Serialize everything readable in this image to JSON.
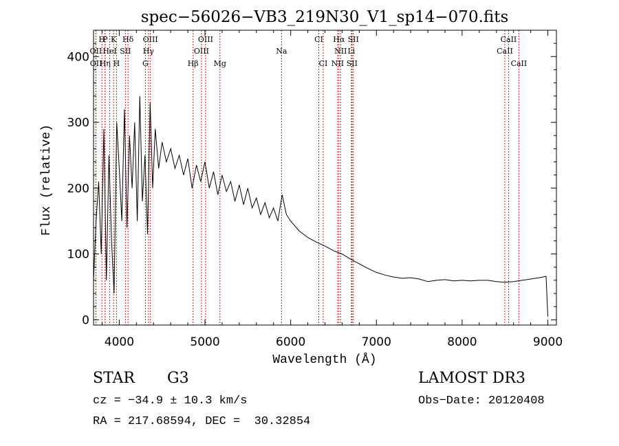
{
  "chart_data": {
    "type": "line",
    "title": "spec−56026−VB3_219N30_V1_sp14−070.fits",
    "xlabel": "Wavelength (Å)",
    "ylabel": "Flux (relative)",
    "xlim": [
      3700,
      9100
    ],
    "ylim": [
      -8,
      440
    ],
    "xticks": [
      4000,
      5000,
      6000,
      7000,
      8000,
      9000
    ],
    "yticks": [
      0,
      100,
      200,
      300,
      400
    ],
    "line_color": "#000000",
    "marker_color": "#b22222",
    "series": [
      {
        "name": "flux",
        "x": [
          3700,
          3730,
          3760,
          3790,
          3820,
          3850,
          3880,
          3910,
          3940,
          3970,
          4000,
          4030,
          4060,
          4090,
          4120,
          4150,
          4180,
          4210,
          4240,
          4270,
          4300,
          4330,
          4360,
          4390,
          4420,
          4460,
          4500,
          4550,
          4600,
          4650,
          4700,
          4750,
          4800,
          4850,
          4900,
          4950,
          5000,
          5050,
          5100,
          5150,
          5200,
          5250,
          5300,
          5350,
          5400,
          5450,
          5500,
          5550,
          5600,
          5650,
          5700,
          5750,
          5800,
          5850,
          5900,
          5950,
          6000,
          6100,
          6200,
          6300,
          6400,
          6500,
          6600,
          6700,
          6800,
          6900,
          7000,
          7100,
          7200,
          7300,
          7400,
          7500,
          7600,
          7700,
          7800,
          7900,
          8000,
          8100,
          8200,
          8300,
          8400,
          8500,
          8600,
          8700,
          8800,
          8900,
          8980,
          9000
        ],
        "y": [
          60,
          150,
          210,
          100,
          290,
          60,
          250,
          120,
          40,
          300,
          230,
          150,
          320,
          140,
          280,
          200,
          300,
          150,
          340,
          180,
          250,
          130,
          330,
          200,
          290,
          230,
          270,
          240,
          260,
          230,
          250,
          220,
          245,
          200,
          235,
          210,
          240,
          200,
          225,
          190,
          220,
          195,
          210,
          180,
          205,
          175,
          200,
          170,
          185,
          160,
          178,
          155,
          170,
          150,
          190,
          160,
          150,
          135,
          125,
          118,
          112,
          105,
          100,
          92,
          85,
          78,
          72,
          68,
          65,
          63,
          64,
          62,
          58,
          60,
          61,
          59,
          60,
          59,
          60,
          60,
          58,
          57,
          58,
          60,
          62,
          64,
          66,
          5
        ]
      }
    ],
    "lines_row1": [
      {
        "label": "H",
        "x": 3798
      },
      {
        "label": "P",
        "x": 3835
      },
      {
        "label": "K",
        "x": 3934
      },
      {
        "label": "Hδ",
        "x": 4102
      },
      {
        "label": "OIII",
        "x": 4363
      },
      {
        "label": "OIII",
        "x": 5007
      },
      {
        "label": "CI",
        "x": 6328
      },
      {
        "label": "Hα",
        "x": 6563
      },
      {
        "label": "SII",
        "x": 6731
      },
      {
        "label": "CaII",
        "x": 8542
      }
    ],
    "lines_row2": [
      {
        "label": "OII",
        "x": 3727
      },
      {
        "label": "HeI",
        "x": 3889
      },
      {
        "label": "SII",
        "x": 4072
      },
      {
        "label": "Hγ",
        "x": 4341
      },
      {
        "label": "OIII",
        "x": 4959
      },
      {
        "label": "Na",
        "x": 5893
      },
      {
        "label": "NII",
        "x": 6583
      },
      {
        "label": "Li",
        "x": 6708
      },
      {
        "label": "CaII",
        "x": 8498
      }
    ],
    "lines_row3": [
      {
        "label": "OII",
        "x": 3729
      },
      {
        "label": "Hη",
        "x": 3835
      },
      {
        "label": "H",
        "x": 3968
      },
      {
        "label": "G",
        "x": 4305
      },
      {
        "label": "Hβ",
        "x": 4861
      },
      {
        "label": "Mg",
        "x": 5175
      },
      {
        "label": "CI",
        "x": 6380
      },
      {
        "label": "NII",
        "x": 6548
      },
      {
        "label": "SII",
        "x": 6716
      },
      {
        "label": "CaII",
        "x": 8662
      }
    ]
  },
  "info": {
    "object_class": "STAR",
    "subclass": "G3",
    "survey": "LAMOST DR3",
    "cz": "cz = −34.9 ± 10.3 km/s",
    "obs_date": "Obs−Date: 20120408",
    "coords": "RA = 217.68594, DEC =  30.32854"
  }
}
